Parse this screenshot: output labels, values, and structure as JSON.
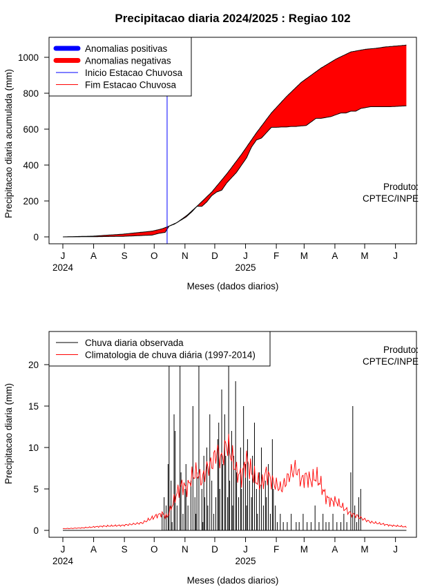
{
  "title": "Precipitacao diaria 2024/2025 : Regiao 102",
  "colors": {
    "positive": "#0000ff",
    "negative": "#ff0000",
    "observed": "#000000",
    "climatology": "#ff0000",
    "start_line": "#0000ff",
    "end_line": "#ff0000"
  },
  "chart_data": [
    {
      "type": "area",
      "ylabel": "Precipitacao diaria acumulada (mm)",
      "xlabel": "Meses (dados diarios)",
      "ylim": [
        0,
        1000
      ],
      "yticks": [
        0,
        200,
        400,
        600,
        800,
        1000
      ],
      "month_labels": [
        "J",
        "A",
        "S",
        "O",
        "N",
        "D",
        "J",
        "F",
        "M",
        "A",
        "M",
        "J"
      ],
      "month_days": [
        0,
        31,
        62,
        92,
        123,
        153,
        184,
        215,
        243,
        274,
        304,
        335
      ],
      "year_labels": [
        {
          "day": 0,
          "text": "2024"
        },
        {
          "day": 184,
          "text": "2025"
        }
      ],
      "legend": {
        "position": "top-left",
        "items": [
          {
            "label": "Anomalias positivas",
            "color": "#0000ff",
            "kind": "thick"
          },
          {
            "label": "Anomalias negativas",
            "color": "#ff0000",
            "kind": "thick"
          },
          {
            "label": "Inicio Estacao Chuvosa",
            "color": "#0000ff",
            "kind": "thin"
          },
          {
            "label": "Fim Estacao Chuvosa",
            "color": "#ff0000",
            "kind": "thin"
          }
        ]
      },
      "product_label": [
        "Produto:",
        "CPTEC/INPE"
      ],
      "rainy_season_start_day": 105,
      "climatology_series": {
        "day": [
          0,
          30,
          60,
          90,
          100,
          107,
          115,
          125,
          135,
          150,
          165,
          180,
          195,
          210,
          225,
          240,
          260,
          275,
          290,
          305,
          315,
          325,
          340,
          346
        ],
        "value": [
          0,
          4,
          15,
          32,
          45,
          60,
          80,
          120,
          170,
          250,
          350,
          460,
          580,
          690,
          780,
          860,
          940,
          990,
          1030,
          1045,
          1050,
          1058,
          1065,
          1068
        ]
      },
      "observed_series": {
        "day": [
          0,
          30,
          60,
          90,
          97,
          103,
          107,
          112,
          118,
          124,
          130,
          135,
          140,
          145,
          150,
          155,
          160,
          165,
          170,
          175,
          180,
          185,
          190,
          195,
          200,
          205,
          210,
          215,
          220,
          225,
          230,
          235,
          240,
          245,
          250,
          255,
          260,
          265,
          270,
          275,
          280,
          285,
          290,
          295,
          300,
          305,
          310,
          315,
          320,
          330,
          340,
          346
        ],
        "value": [
          0,
          1,
          3,
          10,
          20,
          25,
          60,
          70,
          90,
          110,
          140,
          170,
          170,
          195,
          230,
          250,
          260,
          300,
          330,
          360,
          400,
          440,
          500,
          540,
          550,
          580,
          610,
          610,
          612,
          612,
          615,
          615,
          618,
          620,
          640,
          660,
          660,
          665,
          670,
          680,
          690,
          690,
          700,
          700,
          715,
          720,
          725,
          725,
          725,
          725,
          728,
          730
        ]
      }
    },
    {
      "type": "bar",
      "ylabel": "Precipitacao diaria (mm)",
      "xlabel": "Meses (dados diarios)",
      "ylim": [
        0,
        22
      ],
      "yticks": [
        0,
        5,
        10,
        15,
        20
      ],
      "month_labels": [
        "J",
        "A",
        "S",
        "O",
        "N",
        "D",
        "J",
        "F",
        "M",
        "A",
        "M",
        "J"
      ],
      "month_days": [
        0,
        31,
        62,
        92,
        123,
        153,
        184,
        215,
        243,
        274,
        304,
        335
      ],
      "year_labels": [
        {
          "day": 0,
          "text": "2024"
        },
        {
          "day": 184,
          "text": "2025"
        }
      ],
      "legend": {
        "position": "top-left",
        "items": [
          {
            "label": "Chuva diaria observada",
            "color": "#000000",
            "kind": "thin"
          },
          {
            "label": "Climatologia de chuva diária (1997-2014)",
            "color": "#ff0000",
            "kind": "thin"
          }
        ]
      },
      "product_label": [
        "Produto:",
        "CPTEC/INPE"
      ],
      "observed_daily": {
        "day": [
          100,
          102,
          104,
          106,
          107,
          109,
          110,
          112,
          113,
          115,
          118,
          119,
          121,
          123,
          124,
          126,
          129,
          131,
          133,
          134,
          135,
          137,
          140,
          141,
          142,
          143,
          145,
          146,
          148,
          150,
          152,
          154,
          156,
          157,
          158,
          160,
          161,
          163,
          164,
          166,
          167,
          168,
          170,
          171,
          172,
          174,
          175,
          177,
          179,
          180,
          182,
          184,
          185,
          186,
          188,
          190,
          191,
          193,
          195,
          196,
          198,
          200,
          202,
          204,
          205,
          207,
          209,
          211,
          212,
          214,
          216,
          219,
          222,
          226,
          230,
          235,
          238,
          242,
          246,
          250,
          254,
          258,
          262,
          265,
          268,
          272,
          276,
          280,
          283,
          286,
          290,
          292,
          294,
          296,
          298,
          300
        ],
        "value": [
          2,
          4,
          3,
          8,
          22,
          6,
          1,
          14,
          12,
          3,
          22,
          7,
          2,
          5,
          8,
          3,
          6,
          15,
          4,
          2,
          7,
          22,
          5,
          1,
          9,
          4,
          10,
          3,
          14,
          6,
          2,
          4,
          11,
          13,
          5,
          17,
          8,
          14,
          9,
          4,
          22,
          6,
          12,
          3,
          9,
          18,
          7,
          4,
          10,
          5,
          15,
          8,
          3,
          11,
          6,
          4,
          9,
          13,
          5,
          2,
          7,
          10,
          3,
          6,
          4,
          8,
          2,
          11,
          5,
          3,
          1,
          2,
          1,
          1,
          2,
          1,
          1,
          2,
          1,
          1,
          3,
          1,
          2,
          1,
          1,
          2,
          1,
          1,
          2,
          1,
          7,
          15,
          3,
          1,
          4,
          5
        ]
      },
      "climatology_daily": {
        "day": [
          0,
          20,
          40,
          60,
          80,
          90,
          95,
          100,
          105,
          110,
          115,
          120,
          125,
          130,
          135,
          140,
          145,
          150,
          155,
          160,
          165,
          170,
          175,
          180,
          185,
          190,
          195,
          200,
          205,
          210,
          215,
          220,
          225,
          230,
          235,
          240,
          245,
          250,
          255,
          260,
          265,
          270,
          275,
          280,
          285,
          290,
          295,
          300,
          310,
          320,
          330,
          340,
          346
        ],
        "value": [
          0.2,
          0.3,
          0.5,
          0.6,
          0.9,
          1.5,
          1.8,
          2.0,
          1.6,
          3.0,
          4.5,
          5.5,
          5.0,
          6.5,
          7.0,
          6.0,
          7.5,
          8.0,
          9.5,
          8.5,
          10.5,
          9.0,
          7.0,
          6.5,
          8.5,
          7.0,
          6.0,
          5.5,
          7.0,
          6.0,
          5.5,
          5.0,
          6.0,
          7.0,
          7.5,
          6.0,
          6.5,
          6.0,
          6.5,
          5.5,
          4.0,
          3.5,
          3.5,
          3.0,
          2.5,
          2.0,
          1.8,
          1.5,
          1.0,
          0.8,
          0.6,
          0.5,
          0.4
        ]
      }
    }
  ]
}
